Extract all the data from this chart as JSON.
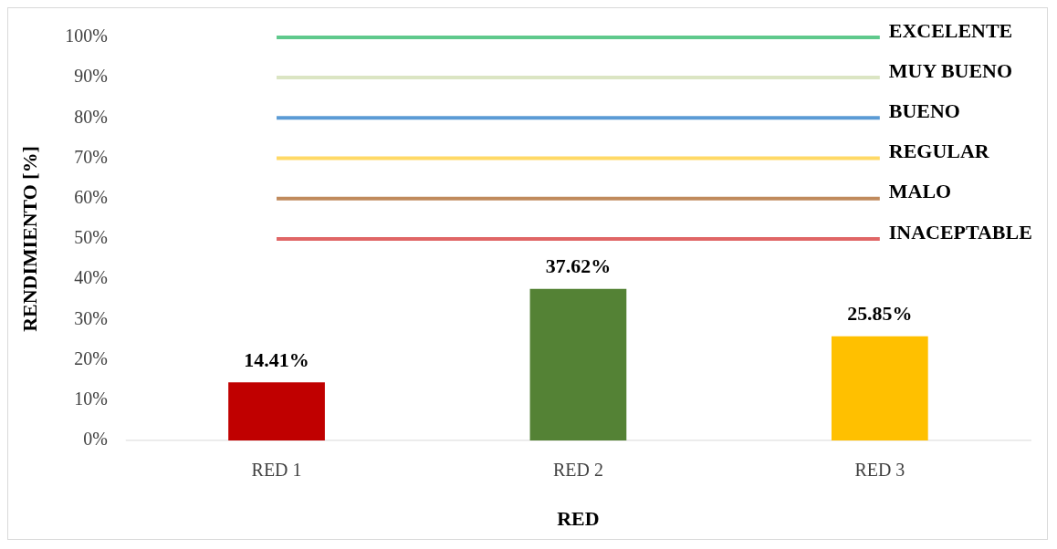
{
  "chart_data": {
    "type": "bar",
    "xlabel": "RED",
    "ylabel": "RENDIMIENTO [%]",
    "categories": [
      "RED 1",
      "RED 2",
      "RED 3"
    ],
    "values": [
      14.41,
      37.62,
      25.85
    ],
    "colors": [
      "#c00000",
      "#548235",
      "#ffc000"
    ],
    "value_labels": [
      "14.41%",
      "37.62%",
      "25.85%"
    ],
    "ylim": [
      0,
      100
    ],
    "yticks": [
      {
        "value": 0,
        "label": "0%"
      },
      {
        "value": 10,
        "label": "10%"
      },
      {
        "value": 20,
        "label": "20%"
      },
      {
        "value": 30,
        "label": "30%"
      },
      {
        "value": 40,
        "label": "40%"
      },
      {
        "value": 50,
        "label": "50%"
      },
      {
        "value": 60,
        "label": "60%"
      },
      {
        "value": 70,
        "label": "70%"
      },
      {
        "value": 80,
        "label": "80%"
      },
      {
        "value": 90,
        "label": "90%"
      },
      {
        "value": 100,
        "label": "100%"
      }
    ],
    "ref_lines": [
      {
        "axis": "y",
        "value": 100,
        "label": "EXCELENTE",
        "color": "#5fc98c"
      },
      {
        "axis": "y",
        "value": 90,
        "label": "MUY BUENO",
        "color": "#dbe5c3"
      },
      {
        "axis": "y",
        "value": 80,
        "label": "BUENO",
        "color": "#5b9bd5"
      },
      {
        "axis": "y",
        "value": 70,
        "label": "REGULAR",
        "color": "#ffd966"
      },
      {
        "axis": "y",
        "value": 60,
        "label": "MALO",
        "color": "#c08a5c"
      },
      {
        "axis": "y",
        "value": 50,
        "label": "INACEPTABLE",
        "color": "#e06666"
      }
    ],
    "grid": false,
    "legend": false
  }
}
